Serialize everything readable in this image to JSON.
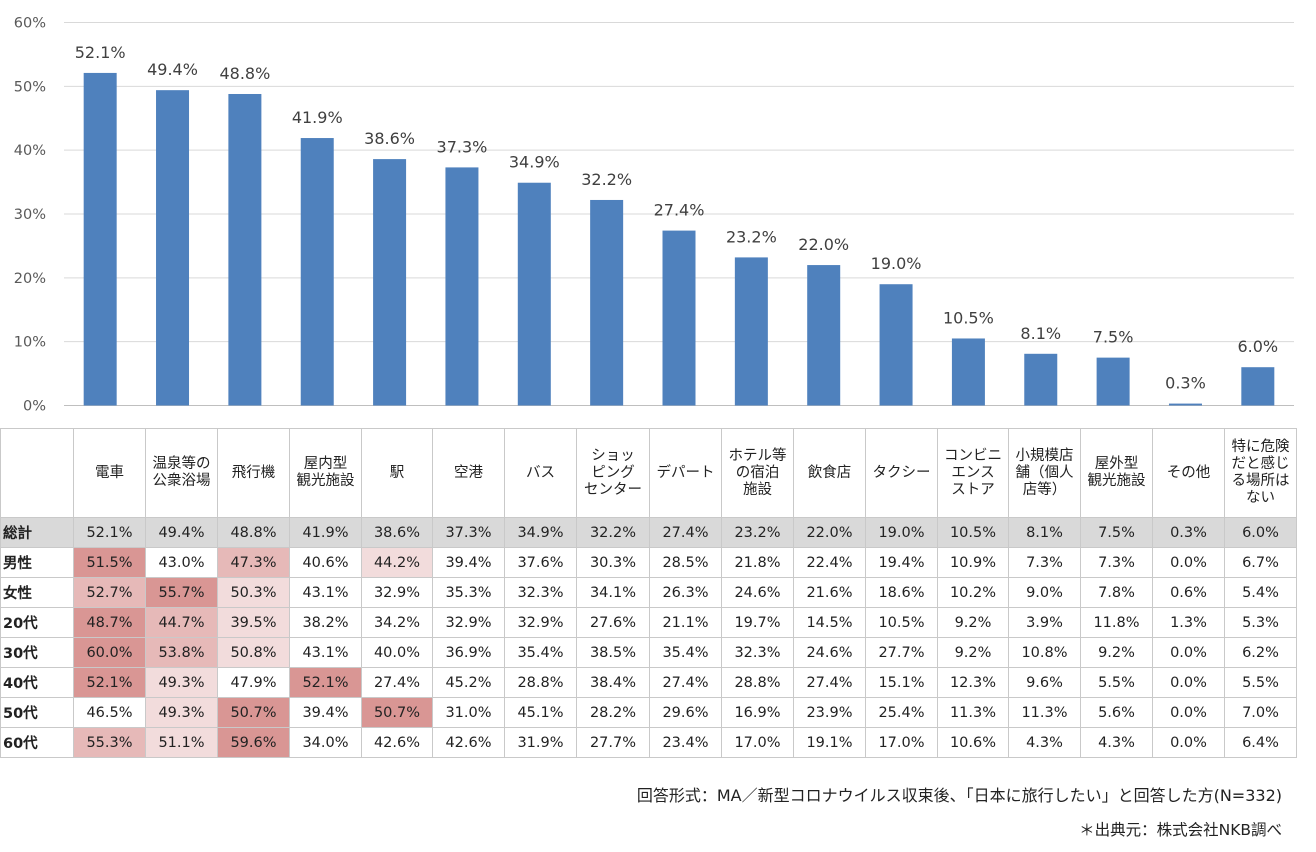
{
  "chart_data": {
    "type": "bar",
    "categories": [
      "電車",
      "温泉等の公衆浴場",
      "飛行機",
      "屋内型観光施設",
      "駅",
      "空港",
      "バス",
      "ショッピングセンター",
      "デパート",
      "ホテル等の宿泊施設",
      "飲食店",
      "タクシー",
      "コンビニエンスストア",
      "小規模店舗（個人店等）",
      "屋外型観光施設",
      "その他",
      "特に危険だと感じる場所はない"
    ],
    "values": [
      52.1,
      49.4,
      48.8,
      41.9,
      38.6,
      37.3,
      34.9,
      32.2,
      27.4,
      23.2,
      22.0,
      19.0,
      10.5,
      8.1,
      7.5,
      0.3,
      6.0
    ],
    "data_labels": [
      "52.1%",
      "49.4%",
      "48.8%",
      "41.9%",
      "38.6%",
      "37.3%",
      "34.9%",
      "32.2%",
      "27.4%",
      "23.2%",
      "22.0%",
      "19.0%",
      "10.5%",
      "8.1%",
      "7.5%",
      "0.3%",
      "6.0%"
    ],
    "ylim": [
      0,
      60
    ],
    "yticks": [
      "0%",
      "10%",
      "20%",
      "30%",
      "40%",
      "50%",
      "60%"
    ],
    "bar_color": "#4f81bd",
    "grid": true
  },
  "table": {
    "headers": [
      "電車",
      "温泉等の\n公衆浴場",
      "飛行機",
      "屋内型\n観光施設",
      "駅",
      "空港",
      "バス",
      "ショッ\nピング\nセンター",
      "デパート",
      "ホテル等\nの宿泊\n施設",
      "飲食店",
      "タクシー",
      "コンビニ\nエンス\nストア",
      "小規模店\n舗（個人\n店等）",
      "屋外型\n観光施設",
      "その他",
      "特に危険\nだと感じ\nる場所は\nない"
    ],
    "rows": [
      {
        "label": "総計",
        "cells": [
          "52.1%",
          "49.4%",
          "48.8%",
          "41.9%",
          "38.6%",
          "37.3%",
          "34.9%",
          "32.2%",
          "27.4%",
          "23.2%",
          "22.0%",
          "19.0%",
          "10.5%",
          "8.1%",
          "7.5%",
          "0.3%",
          "6.0%"
        ],
        "hl": [
          0,
          0,
          0,
          0,
          0,
          0,
          0,
          0,
          0,
          0,
          0,
          0,
          0,
          0,
          0,
          0,
          0
        ]
      },
      {
        "label": "男性",
        "cells": [
          "51.5%",
          "43.0%",
          "47.3%",
          "40.6%",
          "44.2%",
          "39.4%",
          "37.6%",
          "30.3%",
          "28.5%",
          "21.8%",
          "22.4%",
          "19.4%",
          "10.9%",
          "7.3%",
          "7.3%",
          "0.0%",
          "6.7%"
        ],
        "hl": [
          3,
          0,
          2,
          0,
          1,
          0,
          0,
          0,
          0,
          0,
          0,
          0,
          0,
          0,
          0,
          0,
          0
        ]
      },
      {
        "label": "女性",
        "cells": [
          "52.7%",
          "55.7%",
          "50.3%",
          "43.1%",
          "32.9%",
          "35.3%",
          "32.3%",
          "34.1%",
          "26.3%",
          "24.6%",
          "21.6%",
          "18.6%",
          "10.2%",
          "9.0%",
          "7.8%",
          "0.6%",
          "5.4%"
        ],
        "hl": [
          2,
          3,
          1,
          0,
          0,
          0,
          0,
          0,
          0,
          0,
          0,
          0,
          0,
          0,
          0,
          0,
          0
        ]
      },
      {
        "label": "20代",
        "cells": [
          "48.7%",
          "44.7%",
          "39.5%",
          "38.2%",
          "34.2%",
          "32.9%",
          "32.9%",
          "27.6%",
          "21.1%",
          "19.7%",
          "14.5%",
          "10.5%",
          "9.2%",
          "3.9%",
          "11.8%",
          "1.3%",
          "5.3%"
        ],
        "hl": [
          3,
          2,
          1,
          0,
          0,
          0,
          0,
          0,
          0,
          0,
          0,
          0,
          0,
          0,
          0,
          0,
          0
        ]
      },
      {
        "label": "30代",
        "cells": [
          "60.0%",
          "53.8%",
          "50.8%",
          "43.1%",
          "40.0%",
          "36.9%",
          "35.4%",
          "38.5%",
          "35.4%",
          "32.3%",
          "24.6%",
          "27.7%",
          "9.2%",
          "10.8%",
          "9.2%",
          "0.0%",
          "6.2%"
        ],
        "hl": [
          3,
          2,
          1,
          0,
          0,
          0,
          0,
          0,
          0,
          0,
          0,
          0,
          0,
          0,
          0,
          0,
          0
        ]
      },
      {
        "label": "40代",
        "cells": [
          "52.1%",
          "49.3%",
          "47.9%",
          "52.1%",
          "27.4%",
          "45.2%",
          "28.8%",
          "38.4%",
          "27.4%",
          "28.8%",
          "27.4%",
          "15.1%",
          "12.3%",
          "9.6%",
          "5.5%",
          "0.0%",
          "5.5%"
        ],
        "hl": [
          3,
          1,
          0,
          3,
          0,
          0,
          0,
          0,
          0,
          0,
          0,
          0,
          0,
          0,
          0,
          0,
          0
        ]
      },
      {
        "label": "50代",
        "cells": [
          "46.5%",
          "49.3%",
          "50.7%",
          "39.4%",
          "50.7%",
          "31.0%",
          "45.1%",
          "28.2%",
          "29.6%",
          "16.9%",
          "23.9%",
          "25.4%",
          "11.3%",
          "11.3%",
          "5.6%",
          "0.0%",
          "7.0%"
        ],
        "hl": [
          0,
          1,
          3,
          0,
          3,
          0,
          0,
          0,
          0,
          0,
          0,
          0,
          0,
          0,
          0,
          0,
          0
        ]
      },
      {
        "label": "60代",
        "cells": [
          "55.3%",
          "51.1%",
          "59.6%",
          "34.0%",
          "42.6%",
          "42.6%",
          "31.9%",
          "27.7%",
          "23.4%",
          "17.0%",
          "19.1%",
          "17.0%",
          "10.6%",
          "4.3%",
          "4.3%",
          "0.0%",
          "6.4%"
        ],
        "hl": [
          2,
          1,
          3,
          0,
          0,
          0,
          0,
          0,
          0,
          0,
          0,
          0,
          0,
          0,
          0,
          0,
          0
        ]
      }
    ],
    "highlight_colors": [
      "#ffffff",
      "#f2dcdc",
      "#e6b9b8",
      "#d99694"
    ]
  },
  "footer": {
    "note": "回答形式：MA／新型コロナウイルス収束後、「日本に旅行したい」と回答した方(N=332)",
    "source": "＊出典元：株式会社NKB調べ"
  }
}
